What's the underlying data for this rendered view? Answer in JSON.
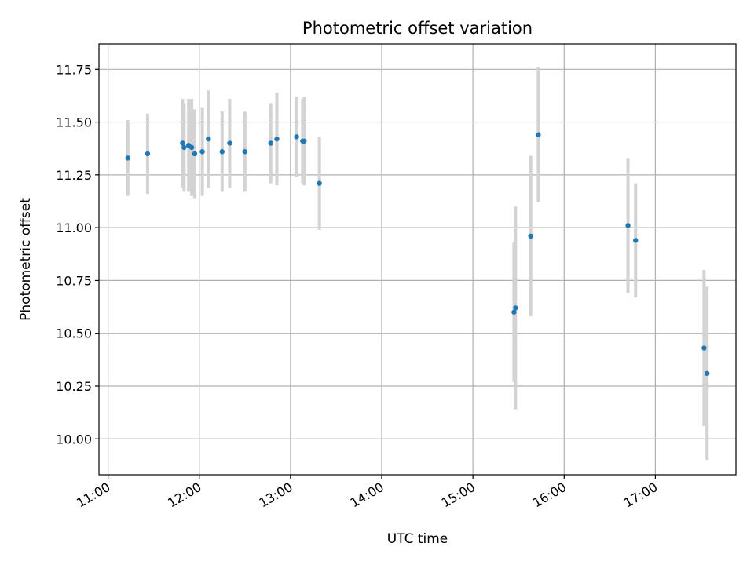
{
  "chart_data": {
    "type": "scatter",
    "title": "Photometric offset variation",
    "xlabel": "UTC time",
    "ylabel": "Photometric offset",
    "x_axis_kind": "time",
    "xlim": [
      "10:54",
      "17:53"
    ],
    "ylim": [
      9.83,
      11.87
    ],
    "x_ticks": [
      "11:00",
      "12:00",
      "13:00",
      "14:00",
      "15:00",
      "16:00",
      "17:00"
    ],
    "y_ticks": [
      10.0,
      10.25,
      10.5,
      10.75,
      11.0,
      11.25,
      11.5,
      11.75
    ],
    "grid": true,
    "colors": {
      "point": "#1f77b4",
      "errorbar": "#d3d3d3",
      "grid": "#b0b0b0"
    },
    "series": [
      {
        "points": [
          {
            "x": "11:13",
            "y": 11.33,
            "err": 0.18
          },
          {
            "x": "11:26",
            "y": 11.35,
            "err": 0.19
          },
          {
            "x": "11:49",
            "y": 11.4,
            "err": 0.21
          },
          {
            "x": "11:50",
            "y": 11.38,
            "err": 0.21
          },
          {
            "x": "11:53",
            "y": 11.39,
            "err": 0.22
          },
          {
            "x": "11:55",
            "y": 11.38,
            "err": 0.23
          },
          {
            "x": "11:57",
            "y": 11.35,
            "err": 0.21
          },
          {
            "x": "12:02",
            "y": 11.36,
            "err": 0.21
          },
          {
            "x": "12:06",
            "y": 11.42,
            "err": 0.23
          },
          {
            "x": "12:15",
            "y": 11.36,
            "err": 0.19
          },
          {
            "x": "12:20",
            "y": 11.4,
            "err": 0.21
          },
          {
            "x": "12:30",
            "y": 11.36,
            "err": 0.19
          },
          {
            "x": "12:47",
            "y": 11.4,
            "err": 0.19
          },
          {
            "x": "12:51",
            "y": 11.42,
            "err": 0.22
          },
          {
            "x": "13:04",
            "y": 11.43,
            "err": 0.19
          },
          {
            "x": "13:08",
            "y": 11.41,
            "err": 0.2
          },
          {
            "x": "13:09",
            "y": 11.41,
            "err": 0.21
          },
          {
            "x": "13:19",
            "y": 11.21,
            "err": 0.22
          },
          {
            "x": "15:27",
            "y": 10.6,
            "err": 0.33
          },
          {
            "x": "15:28",
            "y": 10.62,
            "err": 0.48
          },
          {
            "x": "15:38",
            "y": 10.96,
            "err": 0.38
          },
          {
            "x": "15:43",
            "y": 11.44,
            "err": 0.32
          },
          {
            "x": "16:42",
            "y": 11.01,
            "err": 0.32
          },
          {
            "x": "16:47",
            "y": 10.94,
            "err": 0.27
          },
          {
            "x": "17:32",
            "y": 10.43,
            "err": 0.37
          },
          {
            "x": "17:34",
            "y": 10.31,
            "err": 0.41
          }
        ]
      }
    ]
  }
}
